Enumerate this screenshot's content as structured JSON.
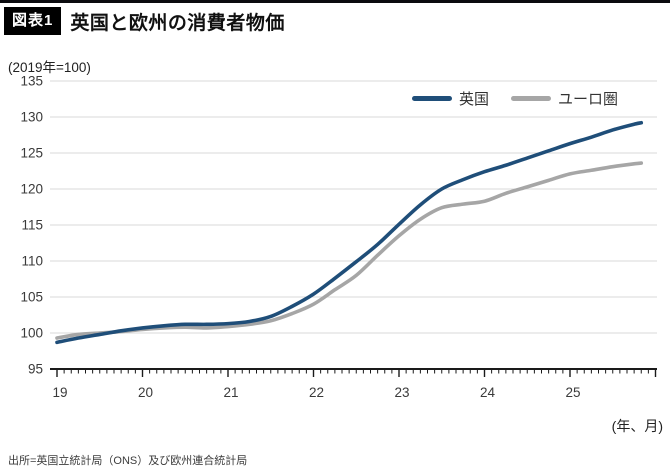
{
  "header": {
    "badge": "図表1",
    "title": "英国と欧州の消費者物価"
  },
  "chart_data": {
    "type": "line",
    "title": "英国と欧州の消費者物価",
    "unit_note": "(2019年=100)",
    "xlabel": "(年、月)",
    "x_tick_labels": [
      "19",
      "20",
      "21",
      "22",
      "23",
      "24",
      "25"
    ],
    "ylim": [
      95,
      135
    ],
    "ytick_step": 5,
    "grid": "horizontal",
    "legend_position": "top-right",
    "grid_color": "#d9d9d9",
    "axis_color": "#1a1a1a",
    "label_color": "#3a3a3a",
    "categories": [
      "2019-01",
      "2019-04",
      "2019-07",
      "2019-10",
      "2020-01",
      "2020-04",
      "2020-07",
      "2020-10",
      "2021-01",
      "2021-04",
      "2021-07",
      "2021-10",
      "2022-01",
      "2022-04",
      "2022-07",
      "2022-10",
      "2023-01",
      "2023-04",
      "2023-07",
      "2023-10",
      "2024-01",
      "2024-04",
      "2024-07",
      "2024-10",
      "2025-01",
      "2025-04",
      "2025-07",
      "2025-10",
      "2025-11"
    ],
    "series": [
      {
        "id": "uk",
        "name": "英国",
        "color": "#1f4e79",
        "values": [
          98.7,
          99.3,
          99.8,
          100.3,
          100.7,
          101.0,
          101.2,
          101.2,
          101.3,
          101.6,
          102.3,
          103.7,
          105.4,
          107.6,
          109.9,
          112.3,
          115.1,
          117.8,
          120.0,
          121.3,
          122.4,
          123.3,
          124.3,
          125.3,
          126.3,
          127.2,
          128.2,
          129.0,
          129.2
        ]
      },
      {
        "id": "euro",
        "name": "ユーロ圏",
        "color": "#a6a6a6",
        "values": [
          99.3,
          99.8,
          100.0,
          100.2,
          100.5,
          100.7,
          100.8,
          100.7,
          100.9,
          101.2,
          101.7,
          102.7,
          104.0,
          106.0,
          108.0,
          110.8,
          113.5,
          115.8,
          117.4,
          117.9,
          118.3,
          119.4,
          120.3,
          121.2,
          122.1,
          122.6,
          123.1,
          123.5,
          123.6
        ]
      }
    ]
  },
  "footer": {
    "source": "出所=英国立統計局（ONS）及び欧州連合統計局"
  }
}
